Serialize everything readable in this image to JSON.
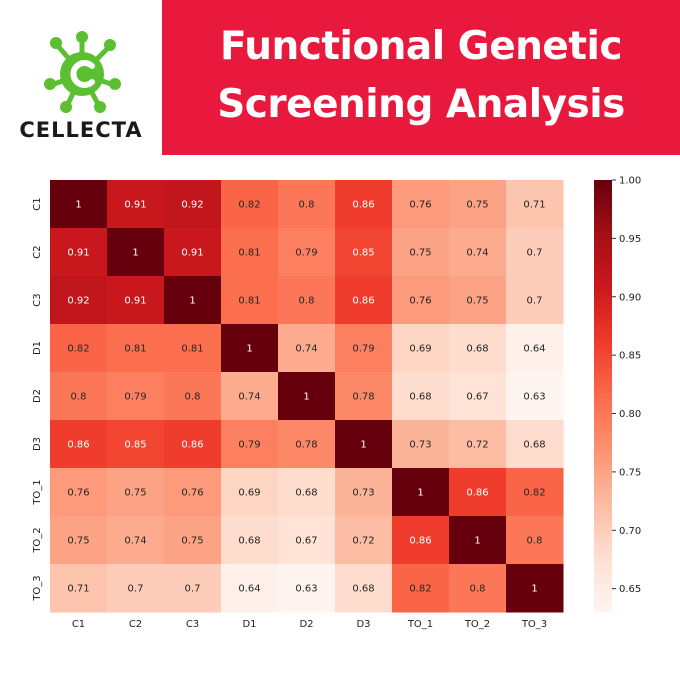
{
  "brand": {
    "name": "CELLECTA",
    "logo_color": "#5bbf31"
  },
  "banner": {
    "line1": "Functional Genetic",
    "line2": "Screening Analysis",
    "background": "#e8193c"
  },
  "chart_data": {
    "type": "heatmap",
    "title": "",
    "xlabel": "",
    "ylabel": "",
    "colormap": "Reds",
    "labels": [
      "C1",
      "C2",
      "C3",
      "D1",
      "D2",
      "D3",
      "TO_1",
      "TO_2",
      "TO_3"
    ],
    "values": [
      [
        1,
        0.91,
        0.92,
        0.82,
        0.8,
        0.86,
        0.76,
        0.75,
        0.71
      ],
      [
        0.91,
        1,
        0.91,
        0.81,
        0.79,
        0.85,
        0.75,
        0.74,
        0.7
      ],
      [
        0.92,
        0.91,
        1,
        0.81,
        0.8,
        0.86,
        0.76,
        0.75,
        0.7
      ],
      [
        0.82,
        0.81,
        0.81,
        1,
        0.74,
        0.79,
        0.69,
        0.68,
        0.64
      ],
      [
        0.8,
        0.79,
        0.8,
        0.74,
        1,
        0.78,
        0.68,
        0.67,
        0.63
      ],
      [
        0.86,
        0.85,
        0.86,
        0.79,
        0.78,
        1,
        0.73,
        0.72,
        0.68
      ],
      [
        0.76,
        0.75,
        0.76,
        0.69,
        0.68,
        0.73,
        1,
        0.86,
        0.82
      ],
      [
        0.75,
        0.74,
        0.75,
        0.68,
        0.67,
        0.72,
        0.86,
        1,
        0.8
      ],
      [
        0.71,
        0.7,
        0.7,
        0.64,
        0.63,
        0.68,
        0.82,
        0.8,
        1
      ]
    ],
    "vmin": 0.63,
    "vmax": 1.0,
    "colorbar_ticks": [
      "1.00",
      "0.95",
      "0.90",
      "0.85",
      "0.80",
      "0.75",
      "0.70",
      "0.65"
    ]
  }
}
